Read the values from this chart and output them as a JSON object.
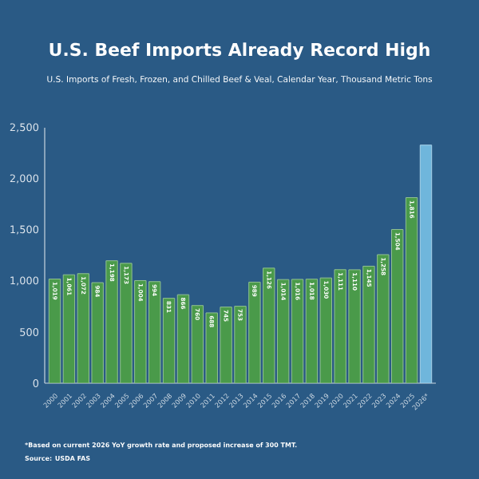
{
  "chart_data": {
    "type": "bar",
    "title": "U.S. Beef Imports Already Record High",
    "subtitle": "U.S. Imports of Fresh, Frozen, and Chilled Beef & Veal, Calendar Year, Thousand Metric Tons",
    "categories": [
      "2000",
      "2001",
      "2002",
      "2003",
      "2004",
      "2005",
      "2006",
      "2007",
      "2008",
      "2009",
      "2010",
      "2011",
      "2012",
      "2013",
      "2014",
      "2015",
      "2016",
      "2017",
      "2018",
      "2019",
      "2020",
      "2021",
      "2022",
      "2023",
      "2024",
      "2025",
      "2026*"
    ],
    "values": [
      1019,
      1061,
      1072,
      984,
      1198,
      1173,
      1004,
      994,
      831,
      866,
      760,
      688,
      745,
      753,
      989,
      1126,
      1014,
      1016,
      1018,
      1030,
      1111,
      1110,
      1145,
      1258,
      1504,
      1816,
      2330
    ],
    "value_labels": [
      "1,019",
      "1,061",
      "1,072",
      "984",
      "1,198",
      "1,173",
      "1,004",
      "994",
      "831",
      "866",
      "760",
      "688",
      "745",
      "753",
      "989",
      "1,126",
      "1,014",
      "1,016",
      "1,018",
      "1,030",
      "1,111",
      "1,110",
      "1,145",
      "1,258",
      "1,504",
      "1,816",
      null
    ],
    "colors": [
      "#4a9a4a",
      "#4a9a4a",
      "#4a9a4a",
      "#4a9a4a",
      "#4a9a4a",
      "#4a9a4a",
      "#4a9a4a",
      "#4a9a4a",
      "#4a9a4a",
      "#4a9a4a",
      "#4a9a4a",
      "#4a9a4a",
      "#4a9a4a",
      "#4a9a4a",
      "#4a9a4a",
      "#4a9a4a",
      "#4a9a4a",
      "#4a9a4a",
      "#4a9a4a",
      "#4a9a4a",
      "#4a9a4a",
      "#4a9a4a",
      "#4a9a4a",
      "#4a9a4a",
      "#4a9a4a",
      "#4a9a4a",
      "#6fb6dc"
    ],
    "ylim": [
      0,
      2500
    ],
    "yticks": [
      {
        "value": 0,
        "label": "0"
      },
      {
        "value": 500,
        "label": "500"
      },
      {
        "value": 1000,
        "label": "1,000"
      },
      {
        "value": 1500,
        "label": "1,500"
      },
      {
        "value": 2000,
        "label": "2,000"
      },
      {
        "value": 2500,
        "label": "2,500"
      }
    ],
    "grid": false,
    "annotations": [
      "*Based on current 2026 YoY growth rate and proposed increase of 300 TMT.",
      "Source: USDA FAS"
    ]
  }
}
